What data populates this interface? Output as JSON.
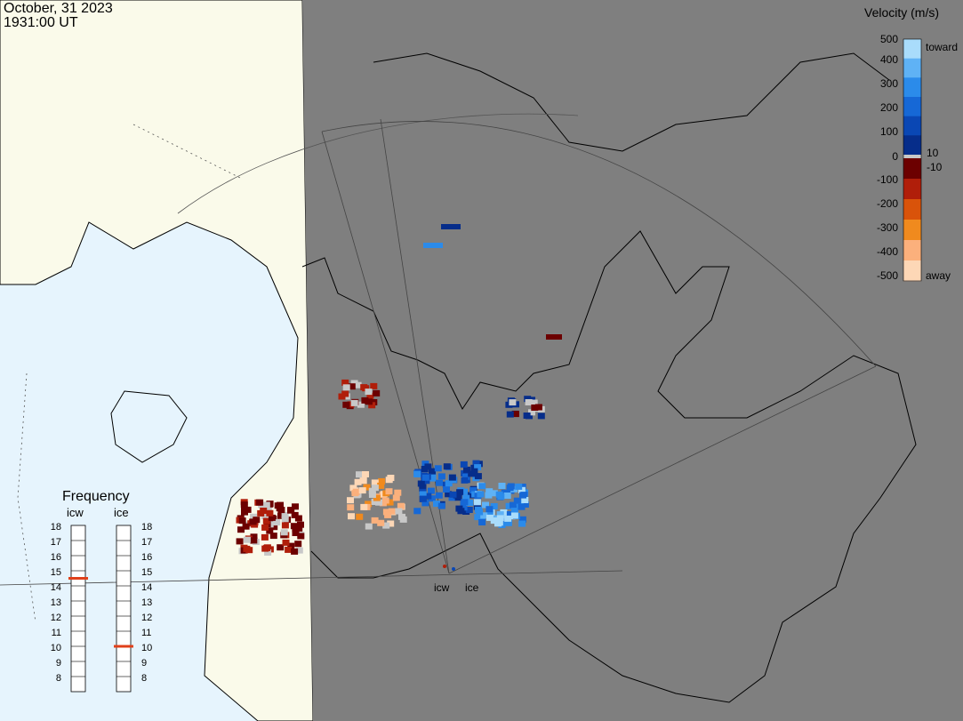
{
  "header": {
    "date": "October, 31 2023",
    "time": "1931:00 UT"
  },
  "colorbar": {
    "title": "Velocity (m/s)",
    "ticks": [
      "500",
      "400",
      "300",
      "200",
      "100",
      "0",
      "-100",
      "-200",
      "-300",
      "-400",
      "-500"
    ],
    "marker_pos": "10",
    "marker_neg": "-10",
    "label_toward": "toward",
    "label_away": "away",
    "toward_colors": [
      "#062d8a",
      "#0a47b4",
      "#1668d6",
      "#2b8bea",
      "#5fb2f5",
      "#a9dcfb"
    ],
    "away_colors": [
      "#6c0000",
      "#b01e0a",
      "#d9530a",
      "#f08a1e",
      "#fbb07c",
      "#fdd7b6"
    ]
  },
  "frequency": {
    "title": "Frequency",
    "radars": [
      "icw",
      "ice"
    ],
    "levels": [
      "18",
      "17",
      "16",
      "15",
      "14",
      "13",
      "12",
      "11",
      "10",
      "9",
      "8"
    ],
    "icw_mhz": 15,
    "ice_mhz": 10.5
  },
  "radar_sites": [
    "icw",
    "ice"
  ],
  "colors": {
    "ocean": "#e6f4fd",
    "land": "#fafaea",
    "night": "#7f7f7f",
    "ground_scatter": "#c8c8c8",
    "marker": "#e0401a"
  }
}
